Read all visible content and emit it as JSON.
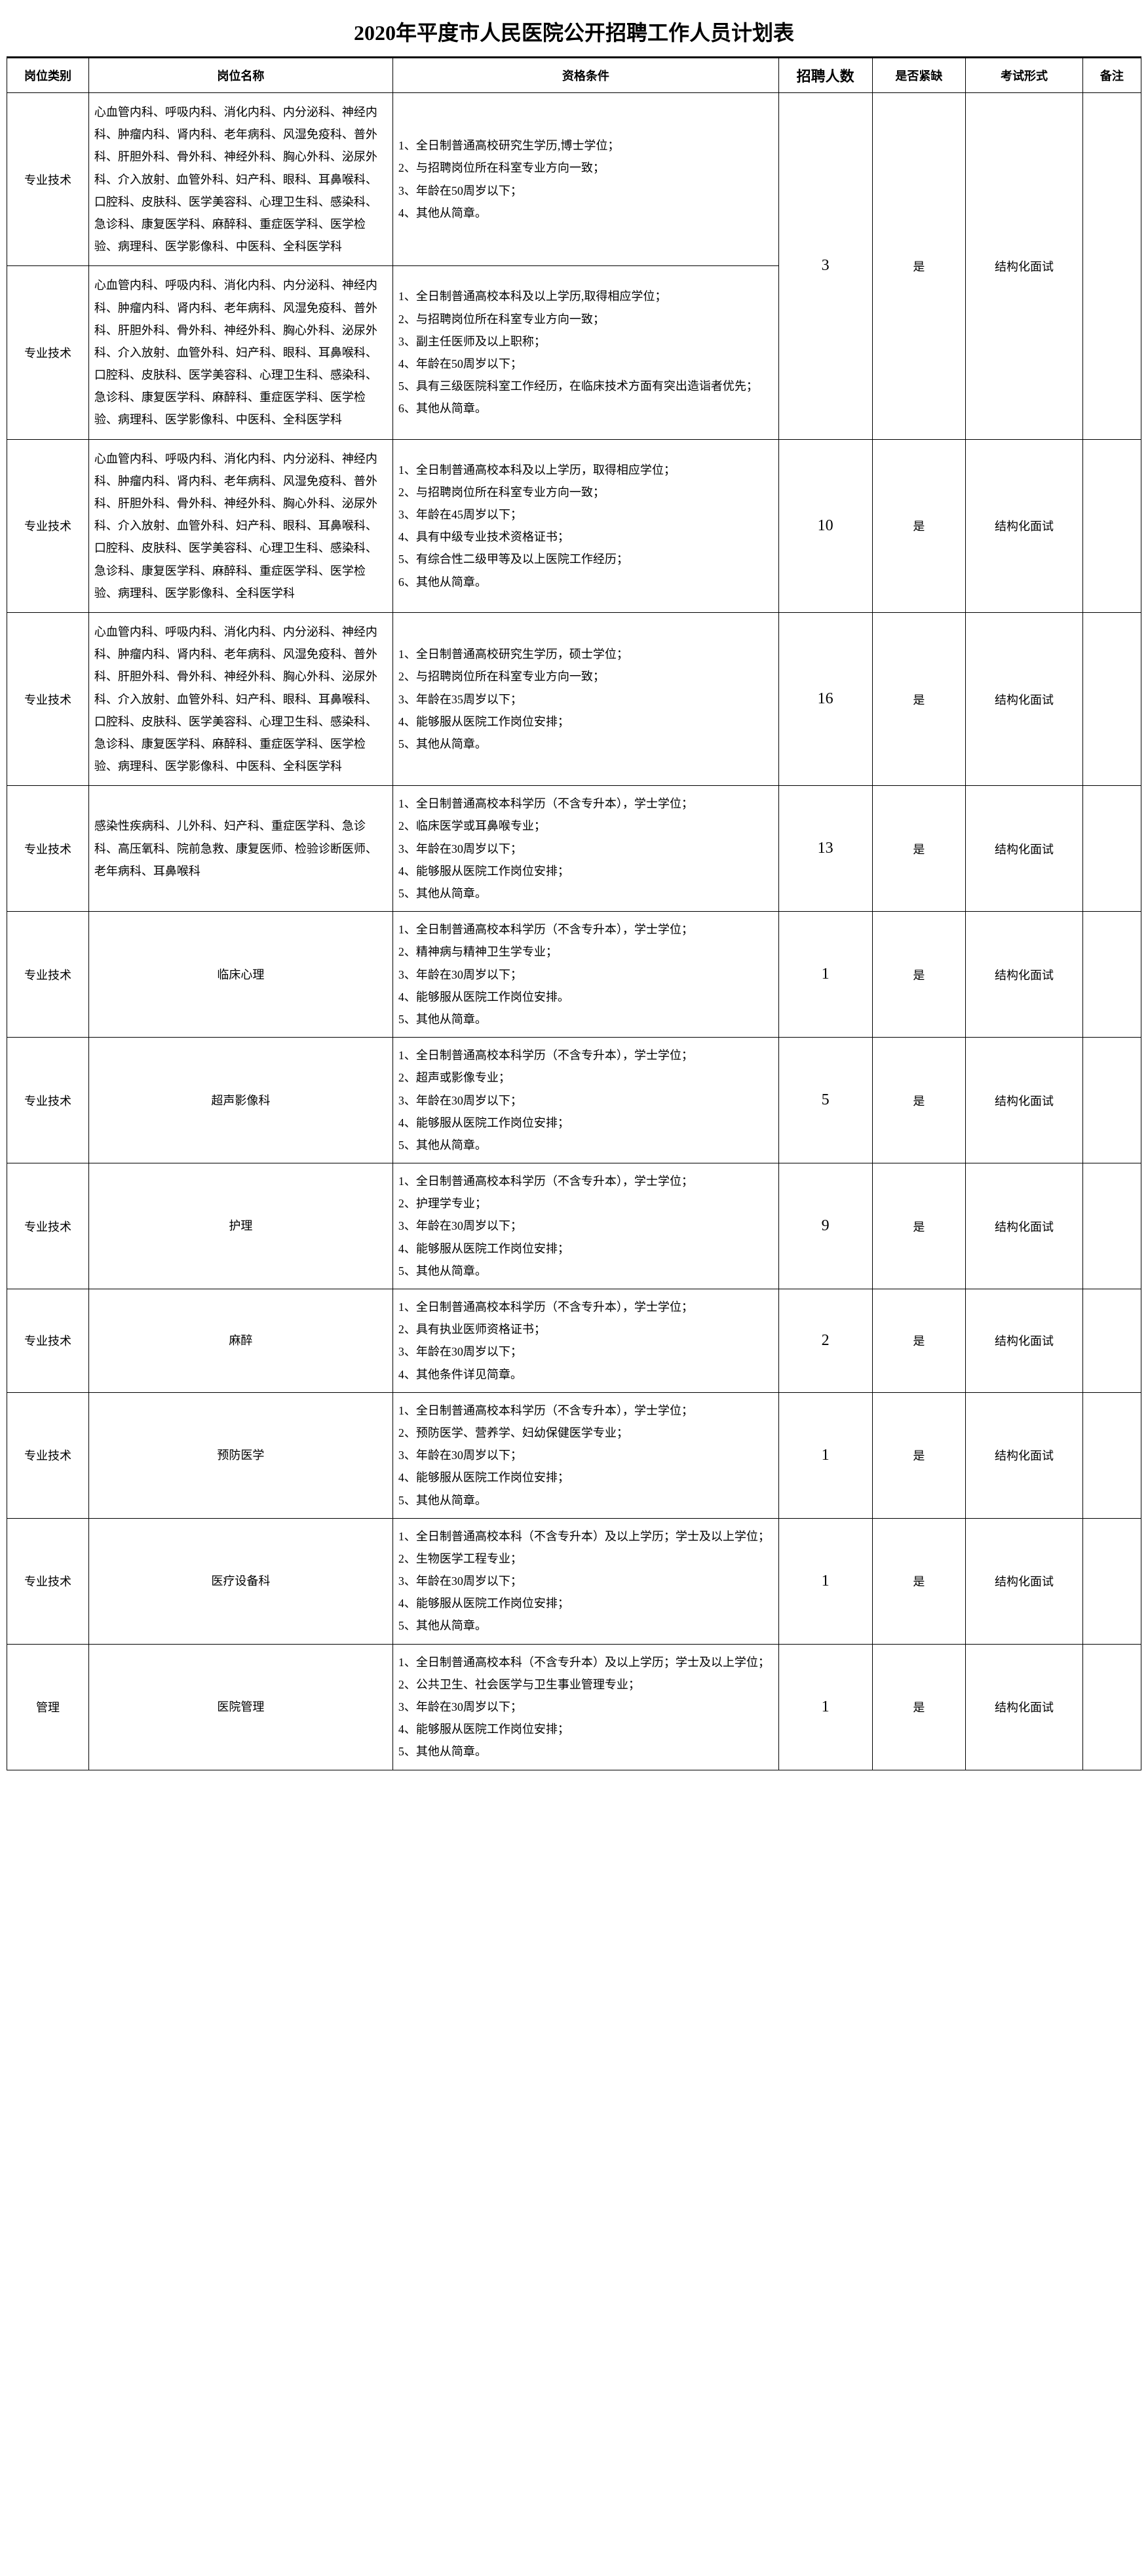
{
  "title": "2020年平度市人民医院公开招聘工作人员计划表",
  "headers": {
    "category": "岗位类别",
    "position": "岗位名称",
    "qualification": "资格条件",
    "count": "招聘人数",
    "urgent": "是否紧缺",
    "exam": "考试形式",
    "note": "备注"
  },
  "departments_long": "心血管内科、呼吸内科、消化内科、内分泌科、神经内科、肿瘤内科、肾内科、老年病科、风湿免疫科、普外科、肝胆外科、骨外科、神经外科、胸心外科、泌尿外科、介入放射、血管外科、妇产科、眼科、耳鼻喉科、口腔科、皮肤科、医学美容科、心理卫生科、感染科、急诊科、康复医学科、麻醉科、重症医学科、医学检验、病理科、医学影像科、中医科、全科医学科",
  "departments_no_cn": "心血管内科、呼吸内科、消化内科、内分泌科、神经内科、肿瘤内科、肾内科、老年病科、风湿免疫科、普外科、肝胆外科、骨外科、神经外科、胸心外科、泌尿外科、介入放射、血管外科、妇产科、眼科、耳鼻喉科、口腔科、皮肤科、医学美容科、心理卫生科、感染科、急诊科、康复医学科、麻醉科、重症医学科、医学检验、病理科、医学影像科、全科医学科",
  "rows": [
    {
      "category": "专业技术",
      "position_key": "departments_long",
      "qualification": "1、全日制普通高校研究生学历,博士学位；\n2、与招聘岗位所在科室专业方向一致；\n3、年龄在50周岁以下；\n4、其他从简章。",
      "count": "3",
      "urgent": "是",
      "exam": "结构化面试",
      "note": "",
      "merge_count_with_next": true
    },
    {
      "category": "专业技术",
      "position_key": "departments_long",
      "qualification": "1、全日制普通高校本科及以上学历,取得相应学位；\n2、与招聘岗位所在科室专业方向一致；\n3、副主任医师及以上职称；\n4、年龄在50周岁以下；\n5、具有三级医院科室工作经历，在临床技术方面有突出造诣者优先；\n6、其他从简章。",
      "count": "",
      "urgent": "",
      "exam": "",
      "note": ""
    },
    {
      "category": "专业技术",
      "position_key": "departments_no_cn",
      "qualification": "1、全日制普通高校本科及以上学历，取得相应学位；　　　　　　　　2、与招聘岗位所在科室专业方向一致；\n3、年龄在45周岁以下；\n4、具有中级专业技术资格证书；\n5、有综合性二级甲等及以上医院工作经历；\n6、其他从简章。",
      "count": "10",
      "urgent": "是",
      "exam": "结构化面试",
      "note": ""
    },
    {
      "category": "专业技术",
      "position_key": "departments_long",
      "qualification": "1、全日制普通高校研究生学历，硕士学位；\n2、与招聘岗位所在科室专业方向一致；\n3、年龄在35周岁以下；\n4、能够服从医院工作岗位安排；\n5、其他从简章。",
      "count": "16",
      "urgent": "是",
      "exam": "结构化面试",
      "note": ""
    },
    {
      "category": "专业技术",
      "position": "感染性疾病科、儿外科、妇产科、重症医学科、急诊科、高压氧科、院前急救、康复医师、检验诊断医师、老年病科、耳鼻喉科",
      "qualification": "1、全日制普通高校本科学历（不含专升本），学士学位；\n2、临床医学或耳鼻喉专业；\n3、年龄在30周岁以下；\n4、能够服从医院工作岗位安排；\n5、其他从简章。",
      "count": "13",
      "urgent": "是",
      "exam": "结构化面试",
      "note": ""
    },
    {
      "category": "专业技术",
      "position": "临床心理",
      "position_center": true,
      "qualification": "1、全日制普通高校本科学历（不含专升本），学士学位；\n2、精神病与精神卫生学专业；\n3、年龄在30周岁以下；\n4、能够服从医院工作岗位安排。\n5、其他从简章。",
      "count": "1",
      "urgent": "是",
      "exam": "结构化面试",
      "note": ""
    },
    {
      "category": "专业技术",
      "position": "超声影像科",
      "position_center": true,
      "qualification": "1、全日制普通高校本科学历（不含专升本），学士学位；\n2、超声或影像专业；\n3、年龄在30周岁以下；\n4、能够服从医院工作岗位安排；\n5、其他从简章。",
      "count": "5",
      "urgent": "是",
      "exam": "结构化面试",
      "note": ""
    },
    {
      "category": "专业技术",
      "position": "护理",
      "position_center": true,
      "qualification": "1、全日制普通高校本科学历（不含专升本），学士学位；\n2、护理学专业；\n3、年龄在30周岁以下；\n4、能够服从医院工作岗位安排；\n5、其他从简章。",
      "count": "9",
      "urgent": "是",
      "exam": "结构化面试",
      "note": ""
    },
    {
      "category": "专业技术",
      "position": "麻醉",
      "position_center": true,
      "qualification": "1、全日制普通高校本科学历（不含专升本），学士学位；\n2、具有执业医师资格证书；\n3、年龄在30周岁以下；\n4、其他条件详见简章。",
      "count": "2",
      "urgent": "是",
      "exam": "结构化面试",
      "note": ""
    },
    {
      "category": "专业技术",
      "position": "预防医学",
      "position_center": true,
      "qualification": "1、全日制普通高校本科学历（不含专升本），学士学位；\n2、预防医学、营养学、妇幼保健医学专业；\n3、年龄在30周岁以下；\n4、能够服从医院工作岗位安排；\n5、其他从简章。",
      "count": "1",
      "urgent": "是",
      "exam": "结构化面试",
      "note": ""
    },
    {
      "category": "专业技术",
      "position": "医疗设备科",
      "position_center": true,
      "qualification": "1、全日制普通高校本科（不含专升本）及以上学历；学士及以上学位；\n2、生物医学工程专业；\n3、年龄在30周岁以下；\n4、能够服从医院工作岗位安排；\n5、其他从简章。",
      "count": "1",
      "urgent": "是",
      "exam": "结构化面试",
      "note": ""
    },
    {
      "category": "管理",
      "position": "医院管理",
      "position_center": true,
      "qualification": "1、全日制普通高校本科（不含专升本）及以上学历；学士及以上学位；\n2、公共卫生、社会医学与卫生事业管理专业；\n3、年龄在30周岁以下；\n4、能够服从医院工作岗位安排；\n5、其他从简章。",
      "count": "1",
      "urgent": "是",
      "exam": "结构化面试",
      "note": ""
    }
  ]
}
